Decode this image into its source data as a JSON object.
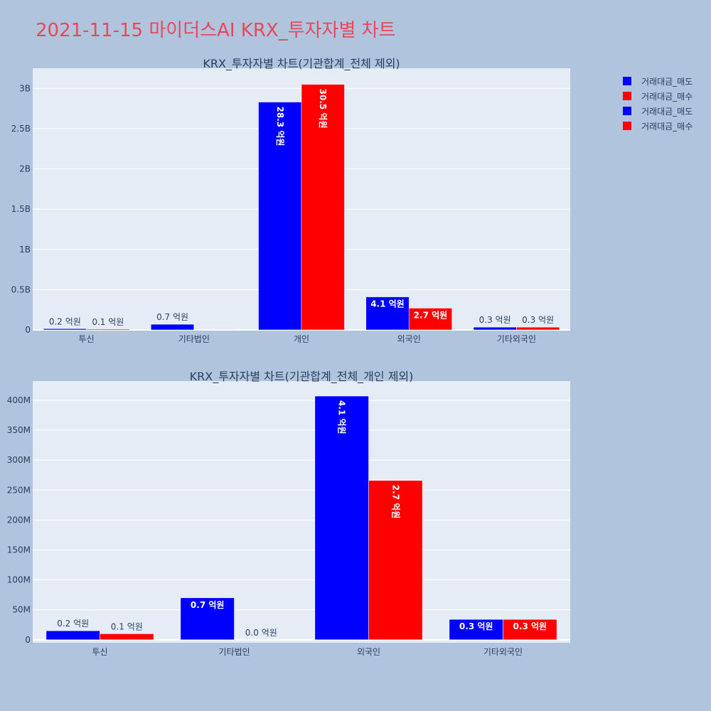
{
  "title": "2021-11-15 마이더스AI KRX_투자자별 차트",
  "legend": [
    {
      "name": "거래대금_매도",
      "color": "#0000ff"
    },
    {
      "name": "거래대금_매수",
      "color": "#ff0000"
    },
    {
      "name": "거래대금_매도",
      "color": "#0000ff"
    },
    {
      "name": "거래대금_매수",
      "color": "#ff0000"
    }
  ],
  "chart_data": [
    {
      "type": "bar",
      "title": "KRX_투자자별 차트(기관합계_전체 제외)",
      "categories": [
        "투신",
        "기타법인",
        "개인",
        "외국인",
        "기타외국인"
      ],
      "series": [
        {
          "name": "거래대금_매도",
          "color": "#0000ff",
          "values": [
            15000000,
            70000000,
            2830000000,
            410000000,
            34000000
          ],
          "labels": [
            "0.2 억원",
            "0.7 억원",
            "28.3 억원",
            "4.1 억원",
            "0.3 억원"
          ]
        },
        {
          "name": "거래대금_매수",
          "color": "#ff0000",
          "values": [
            10000000,
            1000000,
            3050000000,
            270000000,
            34000000
          ],
          "labels": [
            "0.1 억원",
            "",
            "30.5 억원",
            "2.7 억원",
            "0.3 억원"
          ]
        }
      ],
      "ylim": [
        0,
        3250000000
      ],
      "yticks": [
        0,
        500000000,
        1000000000,
        1500000000,
        2000000000,
        2500000000,
        3000000000
      ],
      "yticklabels": [
        "0",
        "0.5B",
        "1B",
        "1.5B",
        "2B",
        "2.5B",
        "3B"
      ],
      "grid": true
    },
    {
      "type": "bar",
      "title": "KRX_투자자별 차트(기관합계_전체_개인 제외)",
      "categories": [
        "투신",
        "기타법인",
        "외국인",
        "기타외국인"
      ],
      "series": [
        {
          "name": "거래대금_매도",
          "color": "#0000ff",
          "values": [
            15000000,
            70000000,
            407000000,
            34000000
          ],
          "labels": [
            "0.2 억원",
            "0.7 억원",
            "4.1 억원",
            "0.3 억원"
          ]
        },
        {
          "name": "거래대금_매수",
          "color": "#ff0000",
          "values": [
            10000000,
            0,
            266000000,
            34000000
          ],
          "labels": [
            "0.1 억원",
            "0.0 억원",
            "2.7 억원",
            "0.3 억원"
          ]
        }
      ],
      "ylim": [
        -5000000,
        432000000
      ],
      "yticks": [
        0,
        50000000,
        100000000,
        150000000,
        200000000,
        250000000,
        300000000,
        350000000,
        400000000
      ],
      "yticklabels": [
        "0",
        "50M",
        "100M",
        "150M",
        "200M",
        "250M",
        "300M",
        "350M",
        "400M"
      ],
      "grid": true
    }
  ]
}
